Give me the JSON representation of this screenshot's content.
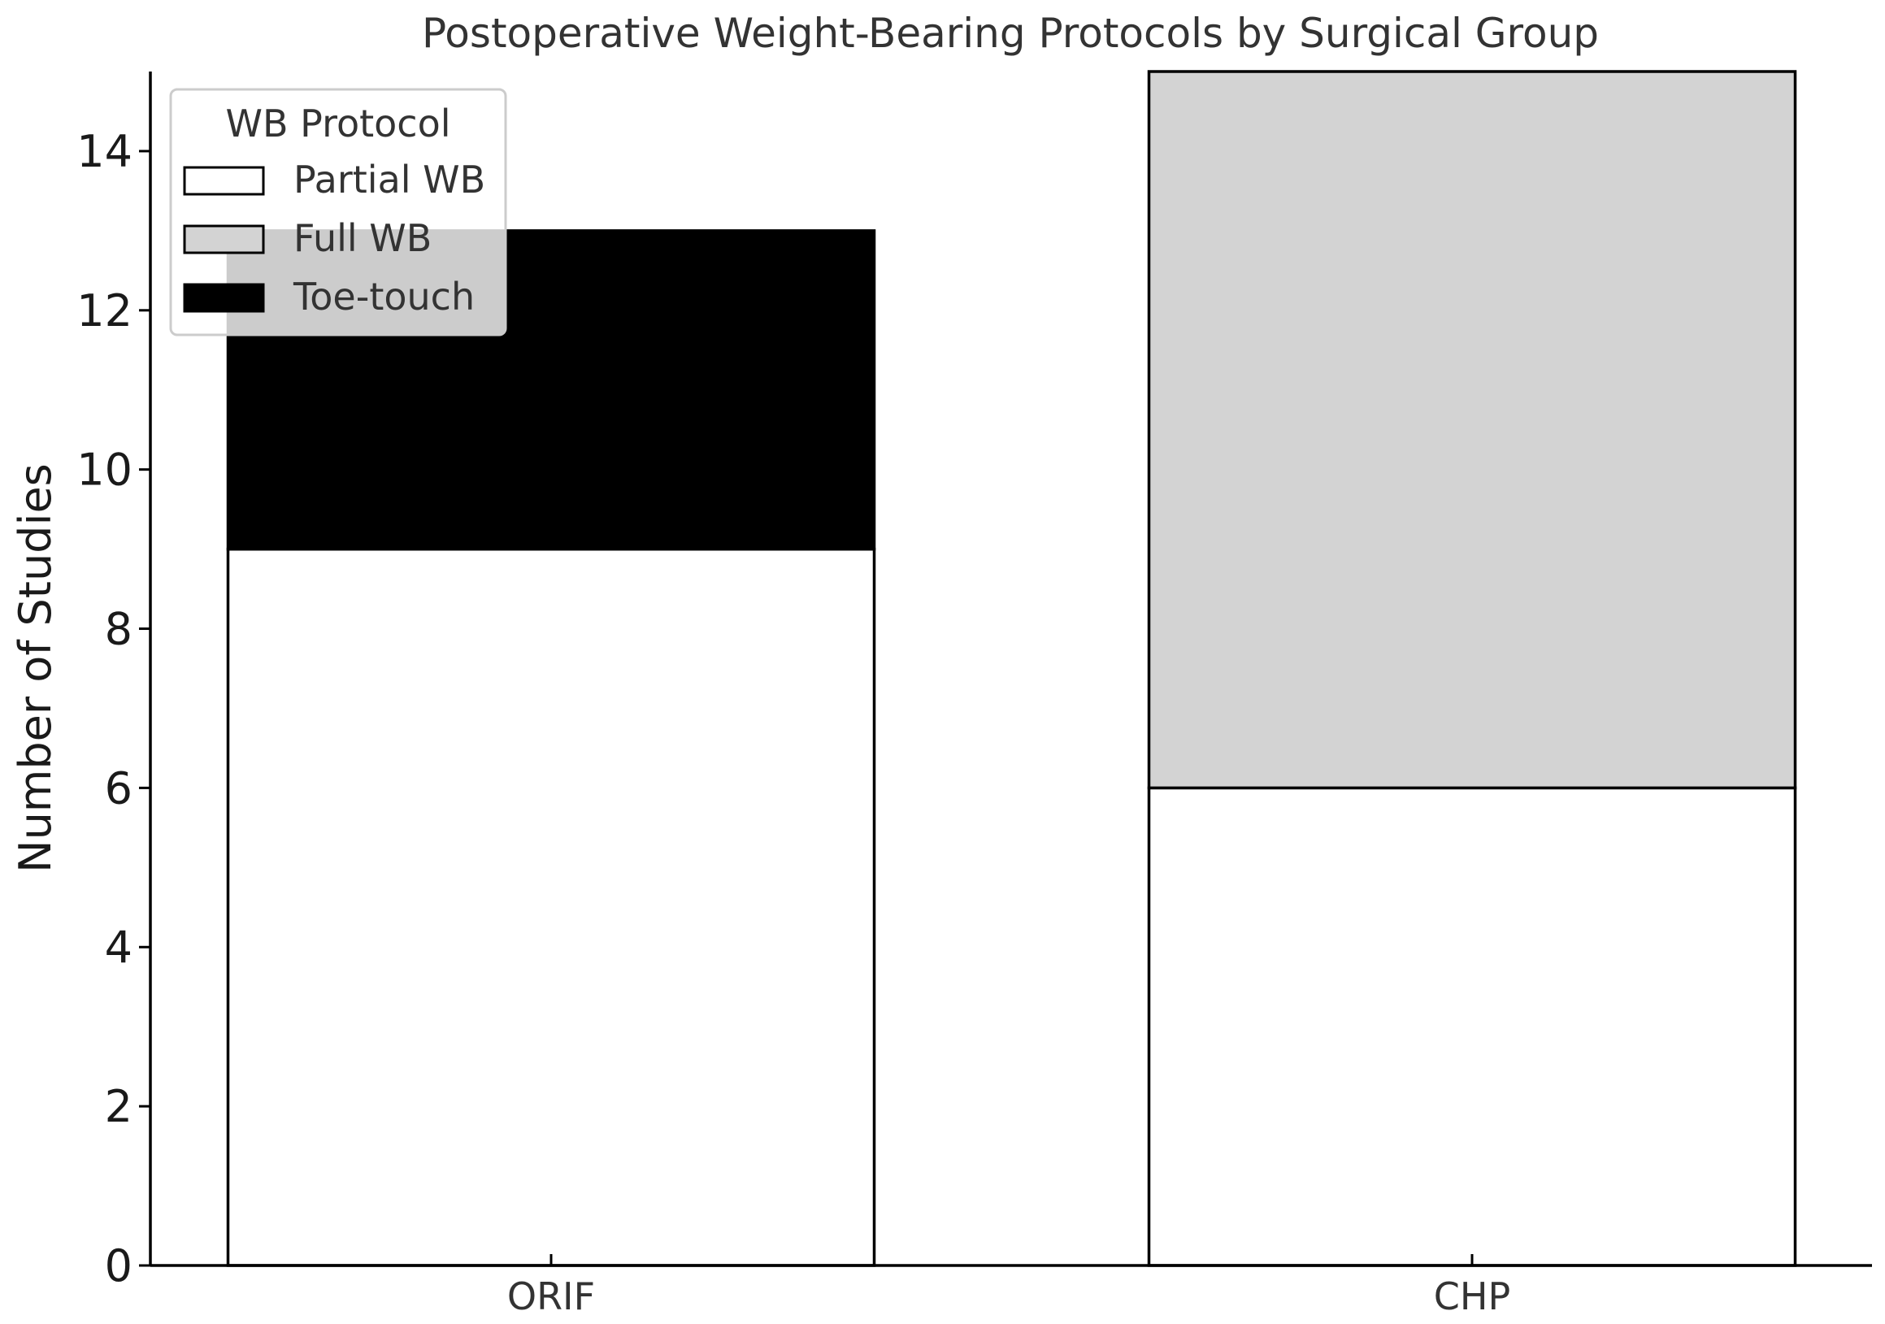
{
  "chart_data": {
    "type": "bar",
    "stacked": true,
    "title": "Postoperative Weight-Bearing Protocols by Surgical Group",
    "xlabel": "",
    "ylabel": "Number of Studies",
    "categories": [
      "ORIF",
      "CHP"
    ],
    "ylim": [
      0,
      15
    ],
    "yticks": [
      0,
      2,
      4,
      6,
      8,
      10,
      12,
      14
    ],
    "grid": false,
    "legend": {
      "title": "WB Protocol",
      "placement": "top-left"
    },
    "series": [
      {
        "name": "Partial WB",
        "values": [
          9,
          6
        ],
        "color": "#ffffff"
      },
      {
        "name": "Full WB",
        "values": [
          0,
          9
        ],
        "color": "#d3d3d3"
      },
      {
        "name": "Toe-touch",
        "values": [
          4,
          0
        ],
        "color": "#000000"
      }
    ]
  }
}
